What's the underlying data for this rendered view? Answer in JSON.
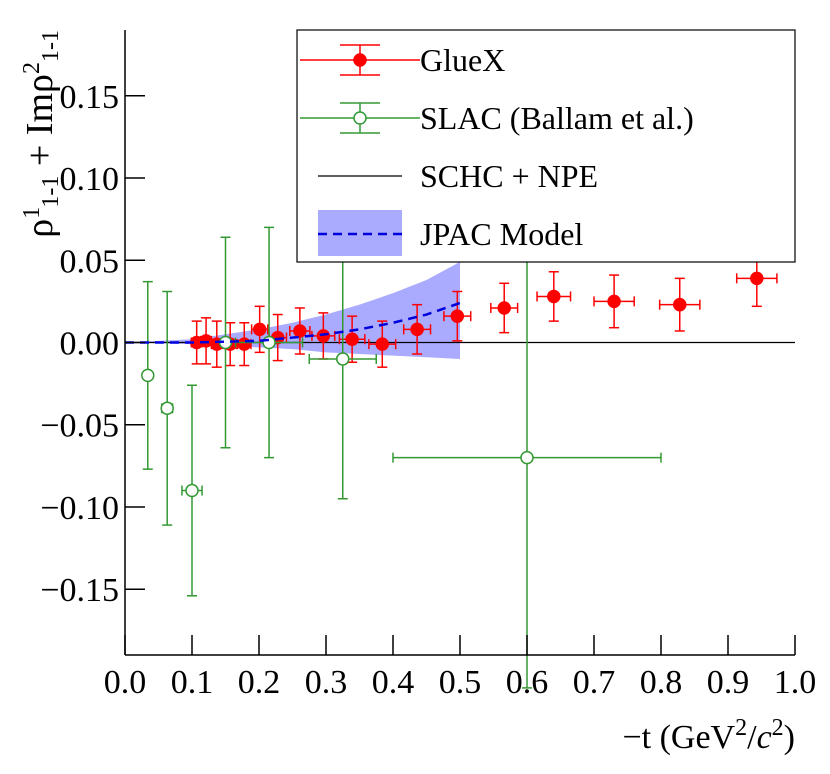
{
  "chart_data": {
    "type": "errorbar",
    "xlabel": [
      {
        "text": "−t (GeV"
      },
      {
        "text": "2",
        "sup": true
      },
      {
        "text": "/"
      },
      {
        "text": "c",
        "italic": true
      },
      {
        "text": "2",
        "sup": true
      },
      {
        "text": ")"
      }
    ],
    "ylabel": [
      {
        "text": "ρ"
      },
      {
        "text": "1",
        "sup": true
      },
      {
        "text": "1-1",
        "sub": true
      },
      {
        "text": " + Im"
      },
      {
        "text": "ρ"
      },
      {
        "text": "2",
        "sup": true
      },
      {
        "text": "1-1",
        "sub": true
      }
    ],
    "xlim": [
      0,
      1
    ],
    "ylim": [
      -0.19,
      0.19
    ],
    "xticks": [
      {
        "value": 0,
        "label": "0.0"
      },
      0.1,
      0.2,
      0.3,
      0.4,
      0.5,
      0.6,
      0.7,
      0.8,
      0.9,
      {
        "value": 1,
        "label": "1.0"
      }
    ],
    "yticks": [
      {
        "value": -0.15,
        "label": "−0.15"
      },
      {
        "value": -0.1,
        "label": "−0.10"
      },
      {
        "value": -0.05,
        "label": "−0.05"
      },
      {
        "value": 0,
        "label": "0.00"
      },
      0.05,
      {
        "value": 0.1,
        "label": "0.10"
      },
      0.15
    ],
    "legend": "upper right",
    "series": [
      {
        "name": "GlueX",
        "kind": "points",
        "marker": "filled",
        "color": "#ff0000",
        "x": [
          0.107,
          0.121,
          0.137,
          0.157,
          0.178,
          0.201,
          0.228,
          0.261,
          0.296,
          0.339,
          0.384,
          0.436,
          0.496,
          0.566,
          0.64,
          0.73,
          0.828,
          0.943
        ],
        "values": [
          0.0,
          0.001,
          -0.001,
          -0.001,
          -0.001,
          0.008,
          0.003,
          0.007,
          0.004,
          0.002,
          -0.001,
          0.008,
          0.016,
          0.021,
          0.028,
          0.025,
          0.023,
          0.039
        ],
        "xerr": [
          0.008,
          0.008,
          0.008,
          0.009,
          0.01,
          0.012,
          0.013,
          0.015,
          0.017,
          0.019,
          0.02,
          0.02,
          0.02,
          0.02,
          0.025,
          0.03,
          0.03,
          0.03
        ],
        "yerr": [
          0.013,
          0.014,
          0.014,
          0.013,
          0.013,
          0.014,
          0.014,
          0.014,
          0.014,
          0.014,
          0.014,
          0.015,
          0.015,
          0.015,
          0.015,
          0.016,
          0.016,
          0.017
        ]
      },
      {
        "name": "SLAC (Ballam et al.)",
        "kind": "points",
        "marker": "open",
        "color": "#339933",
        "x": [
          0.034,
          0.063,
          0.1,
          0.15,
          0.215,
          0.325,
          0.6
        ],
        "values": [
          -0.02,
          -0.04,
          -0.09,
          0.0,
          0.0,
          -0.01,
          -0.07
        ],
        "xerr": [
          0.005,
          0.008,
          0.015,
          0.005,
          0.05,
          0.05,
          0.2
        ],
        "yerr": [
          0.057,
          0.071,
          0.064,
          0.064,
          0.07,
          0.085,
          0.14
        ]
      },
      {
        "name": "SCHC + NPE",
        "kind": "hline",
        "color": "#000000",
        "values": [
          0
        ]
      },
      {
        "name": "JPAC Model",
        "kind": "band",
        "color": "#0000dd",
        "band_color": "#aaaaff",
        "x": [
          0,
          0.1,
          0.2,
          0.25,
          0.3,
          0.35,
          0.4,
          0.45,
          0.5
        ],
        "values": [
          0,
          0,
          0.001,
          0.003,
          0.005,
          0.008,
          0.012,
          0.017,
          0.024
        ],
        "upper": [
          0,
          0.002,
          0.008,
          0.012,
          0.017,
          0.023,
          0.03,
          0.038,
          0.049
        ],
        "lower": [
          0,
          -0.001,
          -0.003,
          -0.004,
          -0.006,
          -0.007,
          -0.008,
          -0.009,
          -0.01
        ]
      }
    ]
  }
}
